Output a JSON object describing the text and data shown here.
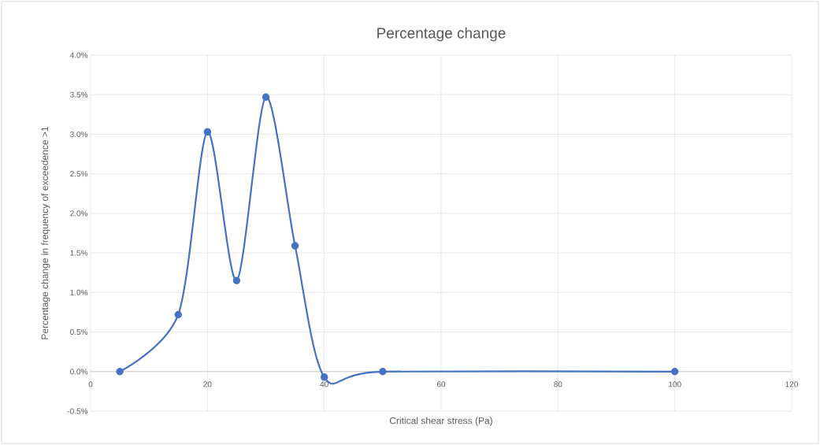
{
  "chart_data": {
    "type": "line",
    "title": "Percentage change",
    "xlabel": "Critical shear stress (Pa)",
    "ylabel": "Percentage change in frequency of exceedence >1",
    "x": [
      5,
      15,
      20,
      25,
      30,
      35,
      40,
      50,
      100
    ],
    "series": [
      {
        "color": "#4472c4",
        "values": [
          0,
          0.72,
          3.03,
          1.15,
          3.47,
          1.59,
          -0.07,
          0,
          0
        ]
      }
    ],
    "xlim": [
      0,
      120
    ],
    "xticks": [
      0,
      20,
      40,
      60,
      80,
      100,
      120
    ],
    "ylim": [
      -0.5,
      4.0
    ],
    "yticks": [
      {
        "value": -0.5,
        "label": "-0.5%"
      },
      {
        "value": 0,
        "label": "0.0%"
      },
      {
        "value": 0.5,
        "label": "0.5%"
      },
      {
        "value": 1.0,
        "label": "1.0%"
      },
      {
        "value": 1.5,
        "label": "1.5%"
      },
      {
        "value": 2.0,
        "label": "2.0%"
      },
      {
        "value": 2.5,
        "label": "2.5%"
      },
      {
        "value": 3.0,
        "label": "3.0%"
      },
      {
        "value": 3.5,
        "label": "3.5%"
      },
      {
        "value": 4.0,
        "label": "4.0%"
      }
    ],
    "grid": true,
    "marker": "circle",
    "line_style": "solid",
    "legend": false
  }
}
